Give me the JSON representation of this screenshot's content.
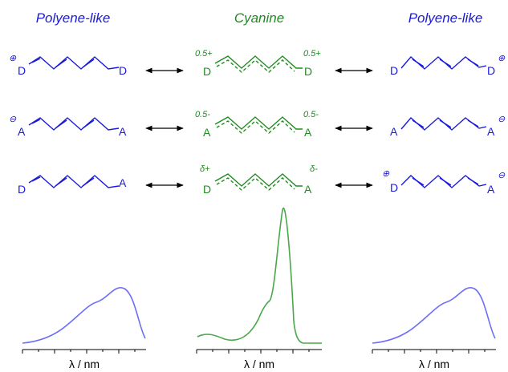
{
  "titles": {
    "left": "Polyene-like",
    "center": "Cyanine",
    "right": "Polyene-like"
  },
  "colors": {
    "polyene": "#1a1adb",
    "cyanine": "#1f8c1f",
    "spectrum_polyene": "#6d6dfa",
    "spectrum_cyanine": "#4aa84a",
    "arrow": "#000000"
  },
  "rows": [
    {
      "left": {
        "end_left": "D",
        "end_right": "D",
        "charge_left": "⊕",
        "charge_right": ""
      },
      "center": {
        "end_left": "D",
        "end_right": "D",
        "charge_left": "0.5+",
        "charge_right": "0.5+"
      },
      "right": {
        "end_left": "D",
        "end_right": "D",
        "charge_left": "",
        "charge_right": "⊕"
      }
    },
    {
      "left": {
        "end_left": "A",
        "end_right": "A",
        "charge_left": "⊖",
        "charge_right": ""
      },
      "center": {
        "end_left": "A",
        "end_right": "A",
        "charge_left": "0.5-",
        "charge_right": "0.5-"
      },
      "right": {
        "end_left": "A",
        "end_right": "A",
        "charge_left": "",
        "charge_right": "⊖"
      }
    },
    {
      "left": {
        "end_left": "D",
        "end_right": "A",
        "charge_left": "",
        "charge_right": ""
      },
      "center": {
        "end_left": "D",
        "end_right": "A",
        "charge_left": "δ+",
        "charge_right": "δ-"
      },
      "right": {
        "end_left": "D",
        "end_right": "A",
        "charge_left": "⊕",
        "charge_right": "⊖"
      }
    }
  ],
  "spectra": {
    "xlabel": "λ / nm"
  }
}
